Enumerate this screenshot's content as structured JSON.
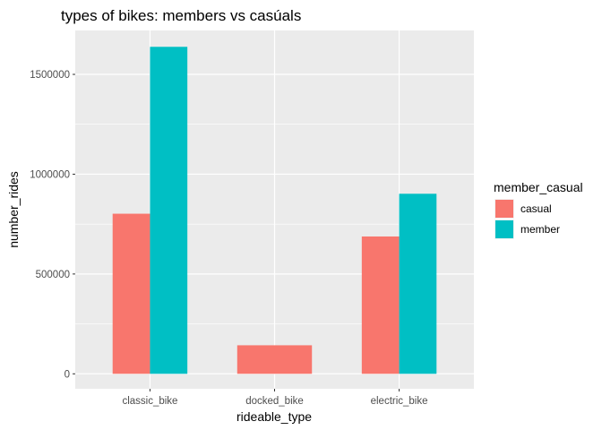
{
  "chart_data": {
    "type": "bar",
    "title": "types of bikes: members vs casúals",
    "xlabel": "rideable_type",
    "ylabel": "number_rides",
    "categories": [
      "classic_bike",
      "docked_bike",
      "electric_bike"
    ],
    "series": [
      {
        "name": "casual",
        "color": "#F8766D",
        "values": [
          802000,
          143000,
          688000
        ]
      },
      {
        "name": "member",
        "color": "#00BFC4",
        "values": [
          1638000,
          null,
          902000
        ]
      }
    ],
    "ylim": [
      -75000,
      1720000
    ],
    "yticks": [
      0,
      500000,
      1000000,
      1500000
    ],
    "ytick_labels": [
      "0",
      "500000",
      "1000000",
      "1500000"
    ],
    "legend_title": "member_casual",
    "legend_position": "right",
    "grid": true,
    "panel_color": "#EBEBEB"
  }
}
